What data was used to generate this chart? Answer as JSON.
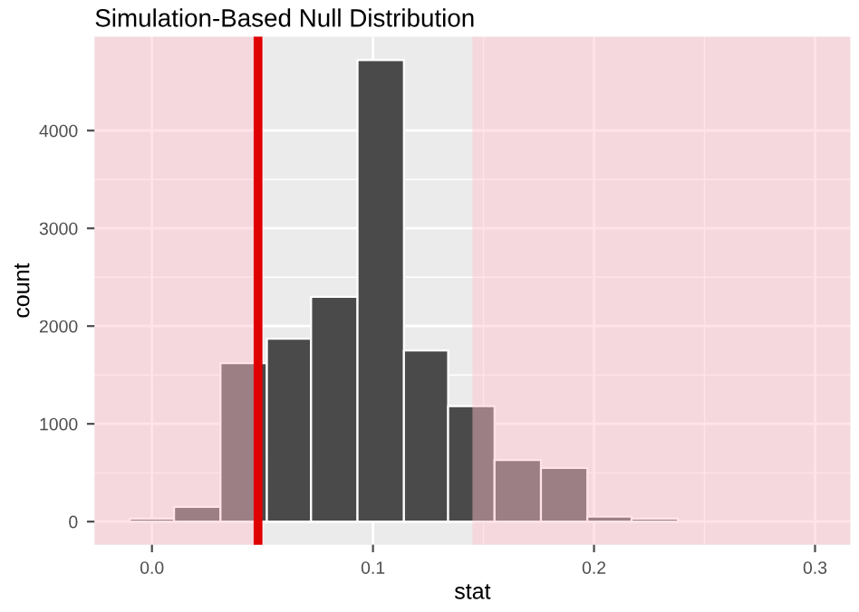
{
  "chart_data": {
    "type": "histogram",
    "title": "Simulation-Based Null Distribution",
    "xlabel": "stat",
    "ylabel": "count",
    "bins": [
      -0.01,
      0.01,
      0.031,
      0.052,
      0.072,
      0.093,
      0.114,
      0.134,
      0.155,
      0.176,
      0.197,
      0.217,
      0.238
    ],
    "values": [
      30,
      150,
      1620,
      1870,
      2300,
      4720,
      1750,
      1180,
      630,
      550,
      50,
      30
    ],
    "color": "#4a4a4a",
    "xlim": [
      -0.026,
      0.316
    ],
    "ylim": [
      -236,
      4960
    ],
    "xticks": [
      {
        "value": 0,
        "label": "0.0"
      },
      0.1,
      0.2,
      0.3
    ],
    "yticks": [
      0,
      1000,
      2000,
      3000,
      4000
    ],
    "grid": true,
    "ref_lines": [
      {
        "axis": "x",
        "value": 0.048,
        "color": "#e00000"
      }
    ],
    "bands": [
      {
        "axis": "x",
        "from": -0.026,
        "to": 0.048,
        "color": "#ffc0cb"
      },
      {
        "axis": "x",
        "from": 0.145,
        "to": 0.316,
        "color": "#ffc0cb"
      }
    ]
  }
}
